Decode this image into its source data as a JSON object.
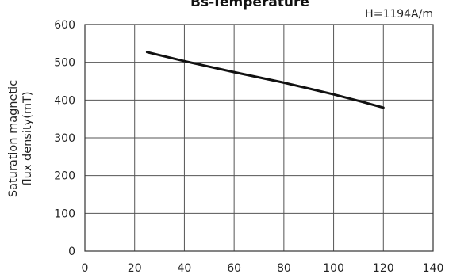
{
  "chart_data": {
    "type": "line",
    "title": "Bs-Temperature",
    "annotation": "H=1194A/m",
    "xlabel": "",
    "ylabel": [
      "Saturation magnetic",
      "flux density(mT)"
    ],
    "xlim": [
      0,
      140
    ],
    "ylim": [
      0,
      600
    ],
    "xticks": [
      0,
      20,
      40,
      60,
      80,
      100,
      120,
      140
    ],
    "yticks": [
      0,
      100,
      200,
      300,
      400,
      500,
      600
    ],
    "grid": true,
    "series": [
      {
        "x": [
          25,
          40,
          60,
          80,
          100,
          110,
          120
        ],
        "y": [
          527,
          503,
          474,
          446,
          415,
          398,
          380
        ]
      }
    ]
  }
}
